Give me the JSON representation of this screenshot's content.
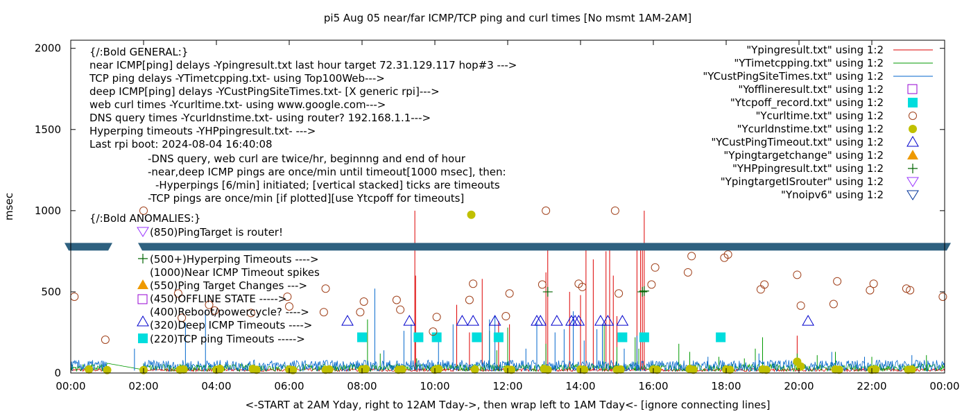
{
  "chart_data": {
    "type": "scatter",
    "title": "pi5 Aug 05  near/far ICMP/TCP ping and curl times [No msmt 1AM-2AM]",
    "xlabel": "<-START at 2AM Yday, right to 12AM Tday->, then wrap left to 1AM Tday<- [ignore connecting lines]",
    "ylabel": "msec",
    "xlim": [
      0,
      24
    ],
    "ylim": [
      0,
      2050
    ],
    "x_ticks": [
      "00:00",
      "02:00",
      "04:00",
      "06:00",
      "08:00",
      "10:00",
      "12:00",
      "14:00",
      "16:00",
      "18:00",
      "20:00",
      "22:00",
      "00:00"
    ],
    "y_ticks": [
      "0",
      "500",
      "1000",
      "1500",
      "2000"
    ],
    "y_tick_values": [
      0,
      500,
      1000,
      1500,
      2000
    ],
    "grid": false,
    "legend_position": "top-right",
    "reference_band_y": 780,
    "notes": [
      {
        "text": "{/:Bold GENERAL:}"
      },
      {
        "text": "near ICMP[ping] delays -Ypingresult.txt last hour target 72.31.129.117 hop#3 --->"
      },
      {
        "text": "TCP ping delays -YTimetcpping.txt- using Top100Web--->"
      },
      {
        "text": "deep ICMP[ping] delays -YCustPingSiteTimes.txt- [X generic rpi]--->"
      },
      {
        "text": "web curl times -Ycurltime.txt- using www.google.com--->"
      },
      {
        "text": "DNS query times -Ycurldnstime.txt- using router? 192.168.1.1--->"
      },
      {
        "text": "Hyperping timeouts -YHPpingresult.txt- --->"
      },
      {
        "text": "Last rpi boot: 2024-08-04 16:40:08"
      },
      {
        "text": "-DNS query, web curl are twice/hr, beginnng and end of hour"
      },
      {
        "text": "-near,deep ICMP pings are once/min until timeout[1000 msec], then:"
      },
      {
        "text": "-Hyperpings [6/min] initiated; [vertical stacked] ticks are timeouts"
      },
      {
        "text": "-TCP pings are once/min [if plotted][use Ytcpoff for timeouts]"
      },
      {
        "text": "{/:Bold ANOMALIES:}"
      },
      {
        "text": "(850)PingTarget is router!"
      },
      {
        "text": "(500+)Hyperping Timeouts ---->"
      },
      {
        "text": "(1000)Near ICMP Timeout spikes"
      },
      {
        "text": "(550)Ping Target Changes --->"
      },
      {
        "text": "(450)OFFLINE STATE ----->"
      },
      {
        "text": "(400)Reboot/powercycle? ---->"
      },
      {
        "text": "(320)Deep ICMP Timeouts ---->"
      },
      {
        "text": "(220)TCP ping Timeouts ----->"
      }
    ],
    "series": [
      {
        "name": "\"Ypingresult.txt\" using 1:2",
        "color": "#dd0000",
        "marker": "line",
        "spikes": [
          [
            9.45,
            1000
          ],
          [
            9.47,
            600
          ],
          [
            10.6,
            420
          ],
          [
            10.95,
            250
          ],
          [
            11.3,
            580
          ],
          [
            11.75,
            320
          ],
          [
            12.05,
            300
          ],
          [
            13.05,
            620
          ],
          [
            13.1,
            800
          ],
          [
            13.7,
            500
          ],
          [
            14.0,
            480
          ],
          [
            14.15,
            800
          ],
          [
            14.35,
            700
          ],
          [
            14.7,
            750
          ],
          [
            14.8,
            800
          ],
          [
            14.9,
            600
          ],
          [
            15.0,
            350
          ],
          [
            15.55,
            800
          ],
          [
            15.65,
            800
          ],
          [
            15.7,
            800
          ],
          [
            15.75,
            1000
          ],
          [
            19.95,
            230
          ]
        ]
      },
      {
        "name": "\"YTimetcpping.txt\" using 1:2",
        "color": "#009900",
        "marker": "line",
        "spikes": [
          [
            2.0,
            60
          ],
          [
            8.15,
            330
          ],
          [
            8.5,
            120
          ],
          [
            9.5,
            90
          ],
          [
            11.5,
            260
          ],
          [
            11.7,
            140
          ],
          [
            12.0,
            280
          ],
          [
            13.05,
            180
          ],
          [
            14.65,
            300
          ],
          [
            15.0,
            160
          ],
          [
            15.5,
            220
          ],
          [
            15.6,
            150
          ],
          [
            16.7,
            180
          ],
          [
            17.0,
            130
          ],
          [
            17.8,
            100
          ],
          [
            18.5,
            90
          ],
          [
            18.8,
            150
          ],
          [
            19.0,
            220
          ],
          [
            19.95,
            120
          ],
          [
            20.5,
            110
          ],
          [
            21.0,
            130
          ],
          [
            22.0,
            100
          ],
          [
            23.5,
            110
          ]
        ]
      },
      {
        "name": "\"YCustPingSiteTimes.txt\" using 1:2",
        "color": "#0066cc",
        "marker": "line",
        "spikes": [
          [
            1.75,
            150
          ],
          [
            3.15,
            310
          ],
          [
            3.7,
            390
          ],
          [
            8.35,
            520
          ],
          [
            8.6,
            140
          ],
          [
            9.15,
            260
          ],
          [
            9.35,
            300
          ],
          [
            10.1,
            220
          ],
          [
            10.5,
            300
          ],
          [
            11.5,
            330
          ],
          [
            11.65,
            350
          ],
          [
            12.5,
            150
          ],
          [
            12.8,
            320
          ],
          [
            13.3,
            250
          ],
          [
            13.55,
            270
          ],
          [
            13.8,
            380
          ],
          [
            14.1,
            200
          ],
          [
            14.45,
            270
          ],
          [
            14.6,
            300
          ],
          [
            15.2,
            150
          ],
          [
            15.55,
            230
          ],
          [
            17.5,
            100
          ],
          [
            18.9,
            120
          ],
          [
            20.9,
            130
          ],
          [
            21.8,
            100
          ],
          [
            23.1,
            110
          ]
        ]
      },
      {
        "name": "\"Yofflineresult.txt\" using 1:2",
        "color": "#9400d3",
        "marker": "open-square",
        "points": []
      },
      {
        "name": "\"Ytcpoff_record.txt\" using 1:2",
        "color": "#00dddd",
        "marker": "filled-square",
        "points": [
          [
            8.0,
            220
          ],
          [
            9.55,
            220
          ],
          [
            10.05,
            220
          ],
          [
            11.15,
            220
          ],
          [
            11.75,
            220
          ],
          [
            15.15,
            220
          ],
          [
            15.75,
            220
          ],
          [
            17.85,
            220
          ]
        ]
      },
      {
        "name": "\"Ycurltime.txt\" using 1:2",
        "color": "#a0401a",
        "marker": "open-circle",
        "points": [
          [
            0.1,
            470
          ],
          [
            0.95,
            205
          ],
          [
            2.0,
            1000
          ],
          [
            2.95,
            490
          ],
          [
            3.05,
            340
          ],
          [
            3.8,
            420
          ],
          [
            3.95,
            385
          ],
          [
            4.95,
            370
          ],
          [
            5.95,
            470
          ],
          [
            6.0,
            410
          ],
          [
            6.95,
            375
          ],
          [
            7.0,
            520
          ],
          [
            7.95,
            375
          ],
          [
            8.05,
            440
          ],
          [
            8.95,
            450
          ],
          [
            9.05,
            390
          ],
          [
            9.95,
            255
          ],
          [
            10.05,
            345
          ],
          [
            10.95,
            450
          ],
          [
            11.05,
            550
          ],
          [
            11.95,
            350
          ],
          [
            12.05,
            490
          ],
          [
            12.95,
            545
          ],
          [
            13.05,
            1000
          ],
          [
            13.95,
            550
          ],
          [
            14.05,
            530
          ],
          [
            14.95,
            1000
          ],
          [
            15.05,
            490
          ],
          [
            15.95,
            545
          ],
          [
            16.05,
            650
          ],
          [
            16.95,
            620
          ],
          [
            17.05,
            720
          ],
          [
            17.95,
            710
          ],
          [
            18.05,
            730
          ],
          [
            18.95,
            515
          ],
          [
            19.05,
            545
          ],
          [
            19.95,
            605
          ],
          [
            20.05,
            415
          ],
          [
            20.95,
            425
          ],
          [
            21.05,
            565
          ],
          [
            21.95,
            510
          ],
          [
            22.05,
            550
          ],
          [
            22.95,
            520
          ],
          [
            23.05,
            510
          ],
          [
            23.95,
            470
          ]
        ]
      },
      {
        "name": "\"Ycurldnstime.txt\" using 1:2",
        "color": "#c0c000",
        "marker": "filled-circle",
        "points": [
          [
            0.5,
            22
          ],
          [
            1.0,
            18
          ],
          [
            2.0,
            18
          ],
          [
            3.0,
            20
          ],
          [
            3.1,
            22
          ],
          [
            4.0,
            20
          ],
          [
            4.1,
            25
          ],
          [
            5.0,
            25
          ],
          [
            5.1,
            20
          ],
          [
            6.0,
            22
          ],
          [
            6.1,
            18
          ],
          [
            7.0,
            20
          ],
          [
            7.1,
            22
          ],
          [
            8.0,
            22
          ],
          [
            8.1,
            25
          ],
          [
            9.0,
            20
          ],
          [
            9.1,
            22
          ],
          [
            10.0,
            20
          ],
          [
            10.1,
            25
          ],
          [
            11.0,
            975
          ],
          [
            11.1,
            22
          ],
          [
            12.0,
            22
          ],
          [
            12.1,
            20
          ],
          [
            13.0,
            25
          ],
          [
            13.1,
            20
          ],
          [
            14.0,
            22
          ],
          [
            14.1,
            20
          ],
          [
            15.0,
            20
          ],
          [
            15.1,
            22
          ],
          [
            16.0,
            22
          ],
          [
            16.1,
            20
          ],
          [
            17.0,
            25
          ],
          [
            17.1,
            20
          ],
          [
            18.0,
            22
          ],
          [
            18.1,
            20
          ],
          [
            19.0,
            22
          ],
          [
            19.1,
            20
          ],
          [
            19.95,
            70
          ],
          [
            20.05,
            40
          ],
          [
            21.0,
            22
          ],
          [
            21.1,
            20
          ],
          [
            22.0,
            20
          ],
          [
            22.1,
            22
          ],
          [
            23.0,
            20
          ],
          [
            23.1,
            22
          ]
        ]
      },
      {
        "name": "\"YCustPingTimeout.txt\" using 1:2",
        "color": "#0000cc",
        "marker": "open-triangle",
        "points": [
          [
            7.6,
            320
          ],
          [
            9.3,
            320
          ],
          [
            10.75,
            320
          ],
          [
            11.05,
            320
          ],
          [
            11.65,
            320
          ],
          [
            12.8,
            320
          ],
          [
            12.9,
            320
          ],
          [
            13.35,
            320
          ],
          [
            13.75,
            320
          ],
          [
            13.85,
            320
          ],
          [
            13.95,
            320
          ],
          [
            14.55,
            320
          ],
          [
            14.75,
            320
          ],
          [
            15.15,
            320
          ],
          [
            20.25,
            320
          ]
        ]
      },
      {
        "name": "\"Ypingtargetchange\" using 1:2",
        "color": "#ee9900",
        "marker": "filled-triangle",
        "points": []
      },
      {
        "name": "\"YHPpingresult.txt\" using 1:2",
        "color": "#006400",
        "marker": "plus",
        "points": [
          [
            13.1,
            500
          ],
          [
            15.7,
            500
          ],
          [
            15.75,
            505
          ]
        ]
      },
      {
        "name": "\"YpingtargetISrouter\" using 1:2",
        "color": "#9933ff",
        "marker": "open-down-triangle",
        "points": []
      },
      {
        "name": "\"Ynoipv6\" using 1:2",
        "color": "#003399",
        "marker": "open-down-triangle",
        "points": []
      }
    ]
  }
}
